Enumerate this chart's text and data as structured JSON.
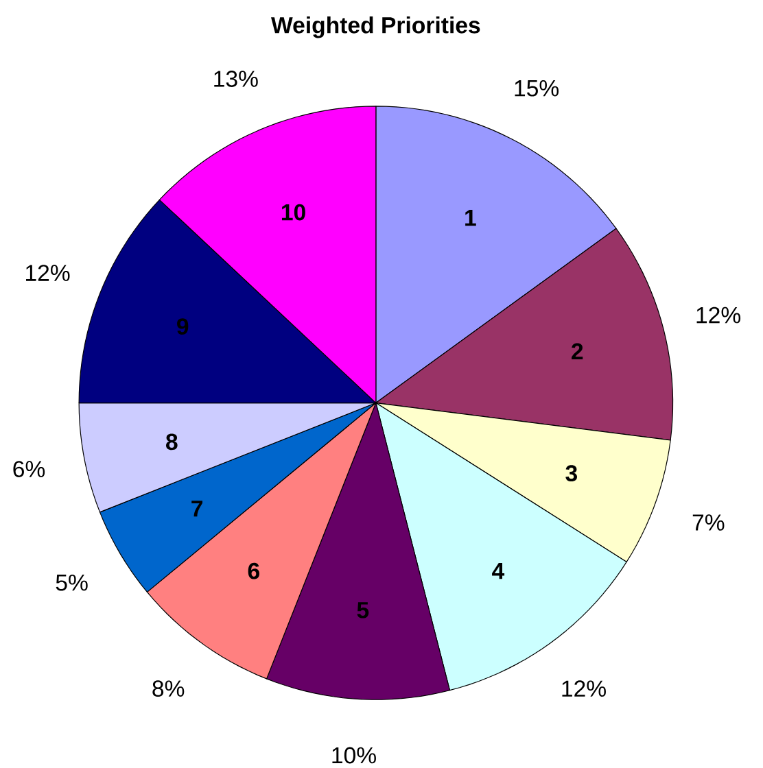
{
  "chart_data": {
    "type": "pie",
    "title": "Weighted Priorities",
    "categories": [
      "1",
      "2",
      "3",
      "4",
      "5",
      "6",
      "7",
      "8",
      "9",
      "10"
    ],
    "values": [
      15,
      12,
      7,
      12,
      10,
      8,
      5,
      6,
      12,
      13
    ],
    "value_labels": [
      "15%",
      "12%",
      "7%",
      "12%",
      "10%",
      "8%",
      "5%",
      "6%",
      "12%",
      "13%"
    ],
    "colors": [
      "#9999ff",
      "#993366",
      "#ffffcc",
      "#ccffff",
      "#660066",
      "#ff8080",
      "#0066cc",
      "#ccccff",
      "#000080",
      "#ff00ff"
    ]
  }
}
